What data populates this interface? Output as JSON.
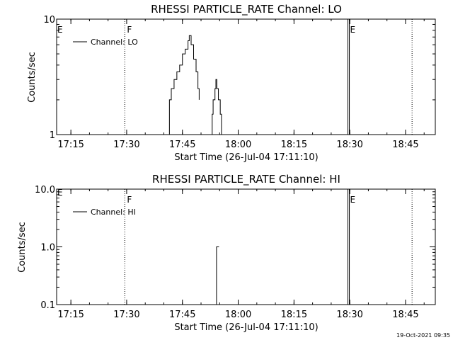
{
  "chart_data": [
    {
      "type": "line",
      "title": "RHESSI PARTICLE_RATE Channel: LO",
      "xlabel": "Start Time (26-Jul-04 17:11:10)",
      "ylabel": "Counts/sec",
      "yscale": "log",
      "ylim": [
        1,
        10
      ],
      "xlim": [
        "17:11:10",
        "18:53:00"
      ],
      "xticks": [
        "17:15",
        "17:30",
        "17:45",
        "18:00",
        "18:15",
        "18:30",
        "18:45"
      ],
      "yticks": [
        "1",
        "10"
      ],
      "grid": false,
      "legend": {
        "placement": "top-left",
        "entries": [
          "Channel: LO"
        ]
      },
      "markers": [
        {
          "time": "17:29:30",
          "label": "F",
          "style": "dotted"
        },
        {
          "time": "18:29:30",
          "label": "E",
          "style": "solid"
        },
        {
          "time": "18:46:45",
          "label": "",
          "style": "dotted"
        }
      ],
      "start_marker_label": "E",
      "series": [
        {
          "name": "Channel: LO",
          "points": [
            [
              "17:41:10",
              1.0
            ],
            [
              "17:41:30",
              2.0
            ],
            [
              "17:42:00",
              2.5
            ],
            [
              "17:42:45",
              3.0
            ],
            [
              "17:43:30",
              3.5
            ],
            [
              "17:44:15",
              4.0
            ],
            [
              "17:45:00",
              5.0
            ],
            [
              "17:45:45",
              5.5
            ],
            [
              "17:46:30",
              6.5
            ],
            [
              "17:46:50",
              7.2
            ],
            [
              "17:47:20",
              6.0
            ],
            [
              "17:48:00",
              4.5
            ],
            [
              "17:48:40",
              3.5
            ],
            [
              "17:49:10",
              2.5
            ],
            [
              "17:49:30",
              2.0
            ]
          ]
        },
        {
          "name": "Channel: LO",
          "points": [
            [
              "17:52:40",
              1.0
            ],
            [
              "17:53:00",
              1.5
            ],
            [
              "17:53:15",
              2.0
            ],
            [
              "17:53:45",
              2.5
            ],
            [
              "17:54:00",
              3.0
            ],
            [
              "17:54:15",
              2.5
            ],
            [
              "17:54:40",
              2.0
            ],
            [
              "17:55:10",
              1.5
            ],
            [
              "17:55:30",
              1.0
            ]
          ]
        }
      ]
    },
    {
      "type": "line",
      "title": "RHESSI PARTICLE_RATE Channel: HI",
      "xlabel": "Start Time (26-Jul-04 17:11:10)",
      "ylabel": "Counts/sec",
      "yscale": "log",
      "ylim": [
        0.1,
        10
      ],
      "xlim": [
        "17:11:10",
        "18:53:00"
      ],
      "xticks": [
        "17:15",
        "17:30",
        "17:45",
        "18:00",
        "18:15",
        "18:30",
        "18:45"
      ],
      "yticks": [
        "0.1",
        "1.0",
        "10.0"
      ],
      "grid": false,
      "legend": {
        "placement": "top-left",
        "entries": [
          "Channel: HI"
        ]
      },
      "markers": [
        {
          "time": "17:29:30",
          "label": "F",
          "style": "dotted"
        },
        {
          "time": "18:29:30",
          "label": "E",
          "style": "solid"
        },
        {
          "time": "18:46:45",
          "label": "",
          "style": "dotted"
        }
      ],
      "start_marker_label": "E",
      "series": [
        {
          "name": "Channel: HI",
          "points": [
            [
              "17:54:10",
              1.0
            ],
            [
              "17:54:50",
              1.0
            ]
          ]
        }
      ]
    }
  ],
  "footer": {
    "timestamp": "19-Oct-2021 09:35"
  }
}
